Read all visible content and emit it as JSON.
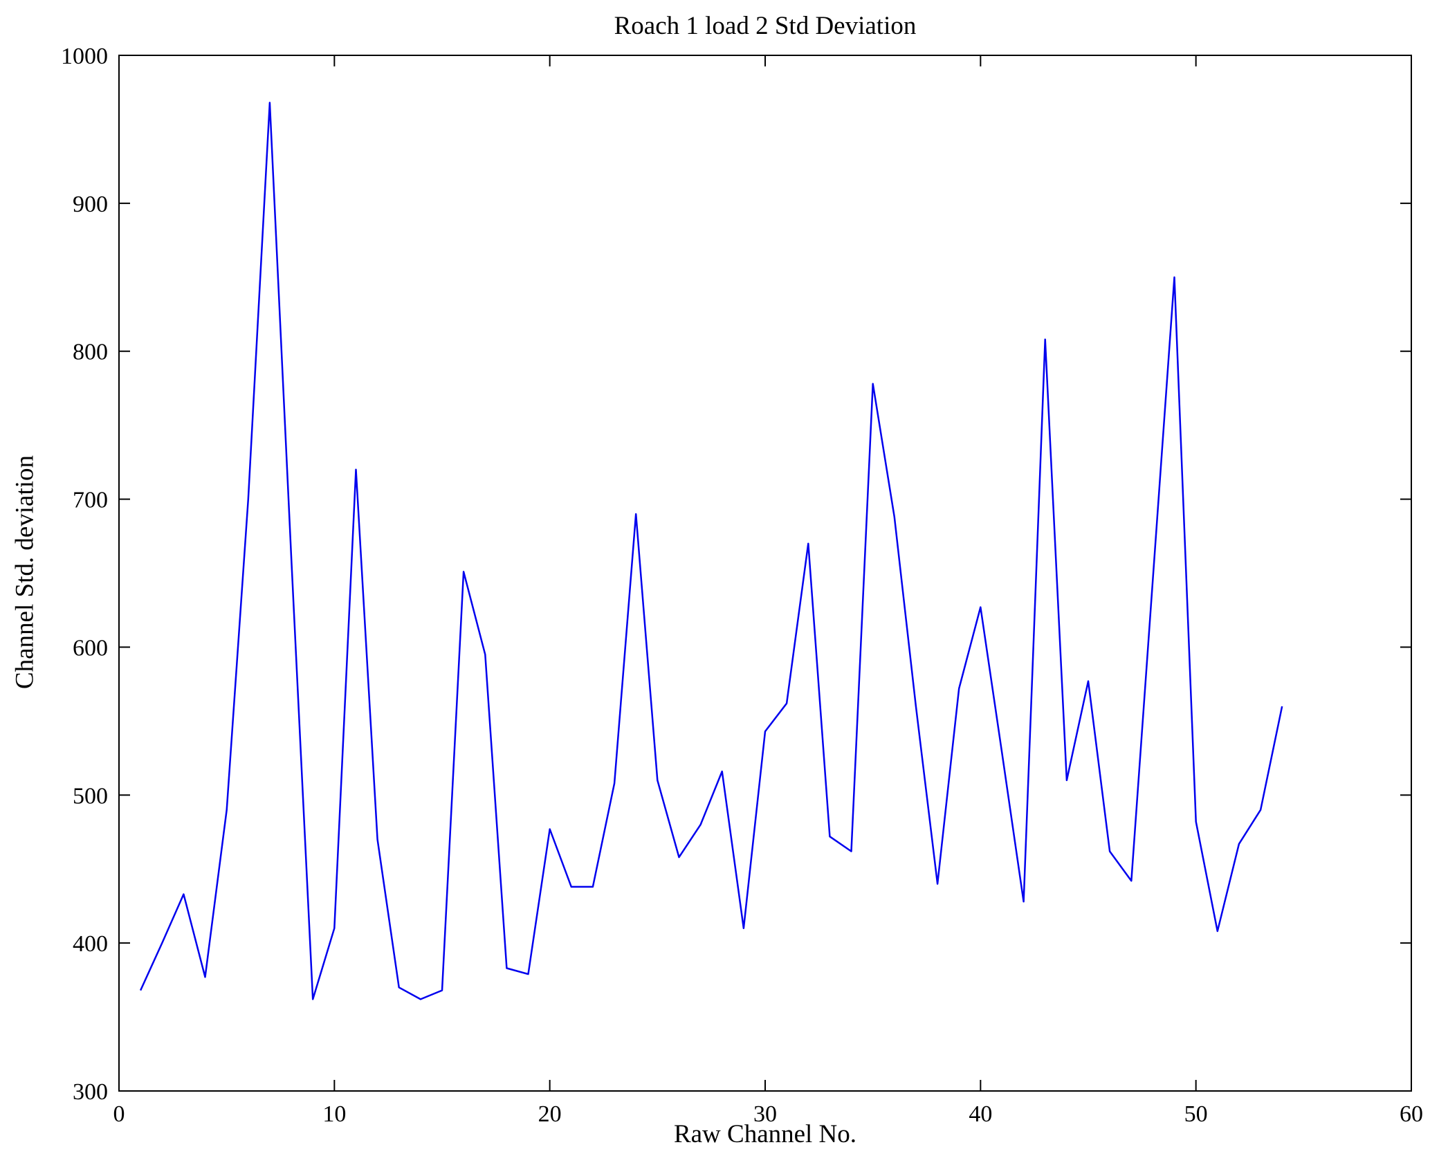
{
  "chart_data": {
    "type": "line",
    "title": "Roach 1 load 2 Std Deviation",
    "xlabel": "Raw Channel No.",
    "ylabel": "Channel Std. deviation",
    "xlim": [
      0,
      60
    ],
    "ylim": [
      300,
      1000
    ],
    "xticks": [
      0,
      10,
      20,
      30,
      40,
      50,
      60
    ],
    "yticks": [
      300,
      400,
      500,
      600,
      700,
      800,
      900,
      1000
    ],
    "grid": false,
    "legend": "none",
    "line_color": "#0000ee",
    "axis_color": "#000000",
    "series": [
      {
        "name": "Channel Std deviation",
        "x": [
          1,
          2,
          3,
          4,
          5,
          6,
          7,
          8,
          9,
          10,
          11,
          12,
          13,
          14,
          15,
          16,
          17,
          18,
          19,
          20,
          21,
          22,
          23,
          24,
          25,
          26,
          27,
          28,
          29,
          30,
          31,
          32,
          33,
          34,
          35,
          36,
          37,
          38,
          39,
          40,
          41,
          42,
          43,
          44,
          45,
          46,
          47,
          48,
          49,
          50,
          51,
          52,
          53,
          54
        ],
        "values": [
          368,
          400,
          433,
          377,
          490,
          700,
          968,
          660,
          362,
          410,
          720,
          470,
          370,
          362,
          368,
          651,
          595,
          383,
          379,
          477,
          438,
          438,
          508,
          690,
          510,
          458,
          480,
          516,
          410,
          543,
          562,
          670,
          472,
          462,
          778,
          688,
          560,
          440,
          572,
          627,
          528,
          428,
          808,
          510,
          577,
          462,
          442,
          646,
          850,
          482,
          408,
          467,
          490,
          560
        ]
      }
    ]
  }
}
